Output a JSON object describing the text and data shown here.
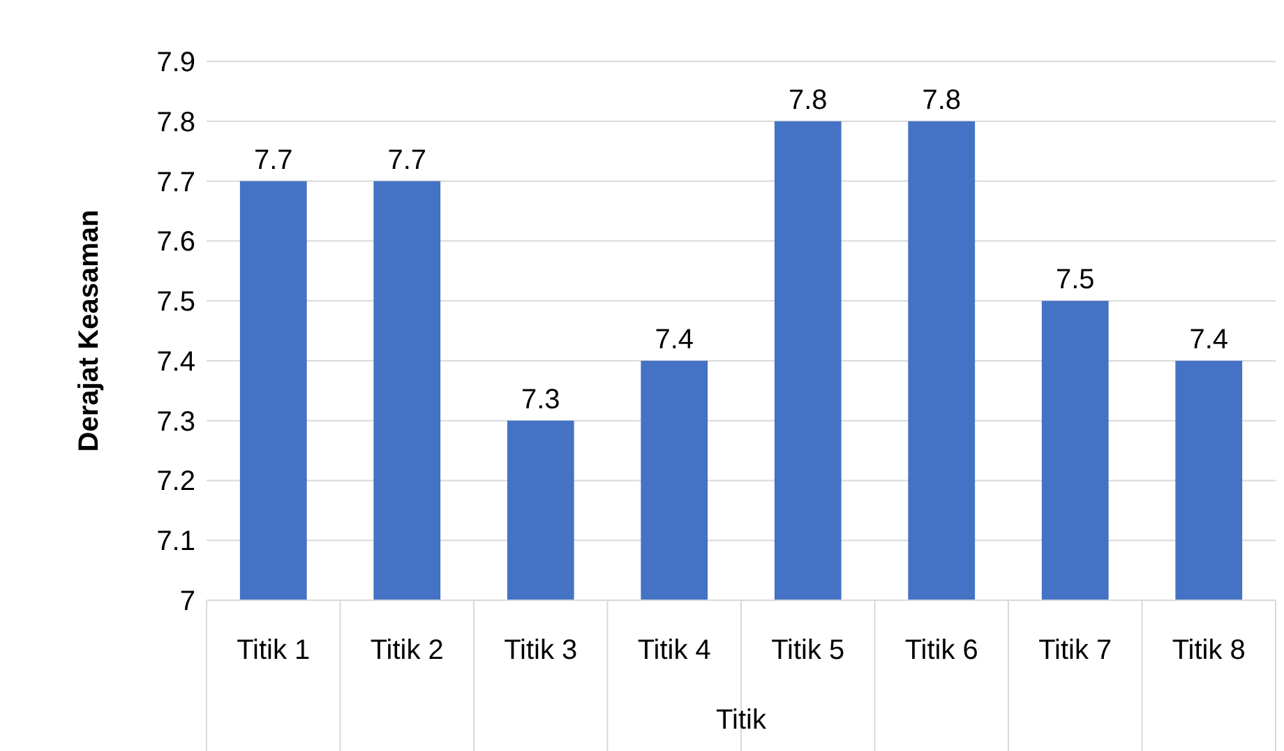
{
  "chart_data": {
    "type": "bar",
    "xlabel": "Titik",
    "ylabel": "Derajat Keasaman",
    "categories": [
      "Titik 1",
      "Titik 2",
      "Titik 3",
      "Titik 4",
      "Titik 5",
      "Titik 6",
      "Titik 7",
      "Titik 8"
    ],
    "values": [
      7.7,
      7.7,
      7.3,
      7.4,
      7.8,
      7.8,
      7.5,
      7.4
    ],
    "color": "#4472c4",
    "ylim": [
      7,
      7.9
    ],
    "yticks": [
      {
        "value": 7,
        "label": "7"
      },
      7.1,
      7.2,
      7.3,
      7.4,
      7.5,
      7.6,
      7.7,
      7.8,
      7.9
    ],
    "grid": "y",
    "data_labels": true
  }
}
